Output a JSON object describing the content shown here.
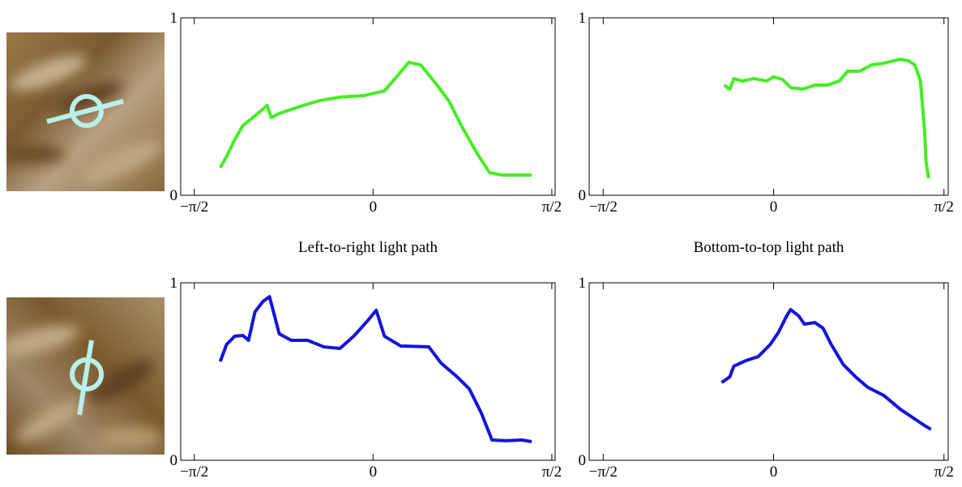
{
  "chart_data": [
    {
      "type": "line",
      "caption": "Left-to-right light path",
      "xlim": [
        -1.69,
        1.6
      ],
      "ylim": [
        0,
        1
      ],
      "xticks": [
        {
          "value": -1.5708,
          "label": "−π/2"
        },
        0,
        {
          "value": 1.5708,
          "label": "π/2"
        }
      ],
      "yticks": [
        0,
        1
      ],
      "series": [
        {
          "color": "#44ee22",
          "x": [
            -1.343,
            -1.287,
            -1.215,
            -1.144,
            -1.038,
            -0.931,
            -0.896,
            -0.824,
            -0.718,
            -0.611,
            -0.469,
            -0.291,
            -0.078,
            0.1,
            0.206,
            0.313,
            0.419,
            0.562,
            0.668,
            0.775,
            0.917,
            1.023,
            1.13,
            1.272,
            1.393
          ],
          "values": [
            0.155,
            0.219,
            0.315,
            0.393,
            0.447,
            0.507,
            0.438,
            0.461,
            0.484,
            0.507,
            0.534,
            0.553,
            0.562,
            0.589,
            0.667,
            0.749,
            0.735,
            0.621,
            0.53,
            0.393,
            0.233,
            0.128,
            0.114,
            0.114,
            0.114
          ]
        }
      ]
    },
    {
      "type": "line",
      "caption": "Bottom-to-top light path",
      "xlim": [
        -1.7,
        1.61
      ],
      "ylim": [
        0,
        1
      ],
      "xticks": [
        {
          "value": -1.5708,
          "label": "−π/2"
        },
        0,
        {
          "value": 1.5708,
          "label": "π/2"
        }
      ],
      "yticks": [
        0,
        1
      ],
      "series": [
        {
          "color": "#44ee22",
          "x": [
            -0.456,
            -0.404,
            -0.367,
            -0.292,
            -0.18,
            -0.067,
            0,
            0.082,
            0.157,
            0.269,
            0.381,
            0.494,
            0.606,
            0.681,
            0.793,
            0.905,
            1.017,
            1.167,
            1.242,
            1.302,
            1.354,
            1.391,
            1.406,
            1.429
          ],
          "values": [
            0.621,
            0.598,
            0.658,
            0.644,
            0.658,
            0.644,
            0.667,
            0.653,
            0.607,
            0.598,
            0.621,
            0.621,
            0.644,
            0.699,
            0.699,
            0.735,
            0.744,
            0.767,
            0.758,
            0.735,
            0.644,
            0.37,
            0.187,
            0.096
          ]
        }
      ]
    },
    {
      "type": "line",
      "xlim": [
        -1.69,
        1.6
      ],
      "ylim": [
        0,
        1
      ],
      "xticks": [
        {
          "value": -1.5708,
          "label": "−π/2"
        },
        0,
        {
          "value": 1.5708,
          "label": "π/2"
        }
      ],
      "yticks": [
        0,
        1
      ],
      "series": [
        {
          "color": "#1414dd",
          "x": [
            -1.343,
            -1.287,
            -1.215,
            -1.144,
            -1.094,
            -1.038,
            -0.967,
            -0.91,
            -0.824,
            -0.718,
            -0.575,
            -0.433,
            -0.291,
            -0.17,
            -0.043,
            0.028,
            0.1,
            0.242,
            0.49,
            0.597,
            0.739,
            0.846,
            0.952,
            1.045,
            1.165,
            1.307,
            1.393
          ],
          "values": [
            0.557,
            0.653,
            0.699,
            0.703,
            0.676,
            0.836,
            0.895,
            0.922,
            0.712,
            0.676,
            0.676,
            0.639,
            0.63,
            0.699,
            0.79,
            0.845,
            0.699,
            0.644,
            0.639,
            0.548,
            0.47,
            0.402,
            0.265,
            0.114,
            0.11,
            0.114,
            0.105
          ]
        }
      ]
    },
    {
      "type": "line",
      "xlim": [
        -1.7,
        1.61
      ],
      "ylim": [
        0,
        1
      ],
      "xticks": [
        {
          "value": -1.5708,
          "label": "−π/2"
        },
        0,
        {
          "value": 1.5708,
          "label": "π/2"
        }
      ],
      "yticks": [
        0,
        1
      ],
      "series": [
        {
          "color": "#1414dd",
          "x": [
            -0.479,
            -0.404,
            -0.367,
            -0.254,
            -0.142,
            -0.03,
            0.045,
            0.12,
            0.157,
            0.232,
            0.284,
            0.381,
            0.456,
            0.531,
            0.643,
            0.756,
            0.868,
            1.017,
            1.167,
            1.279,
            1.391,
            1.451
          ],
          "values": [
            0.438,
            0.47,
            0.53,
            0.562,
            0.584,
            0.653,
            0.721,
            0.813,
            0.849,
            0.813,
            0.767,
            0.776,
            0.744,
            0.653,
            0.539,
            0.47,
            0.411,
            0.365,
            0.288,
            0.242,
            0.196,
            0.174
          ]
        }
      ]
    }
  ]
}
